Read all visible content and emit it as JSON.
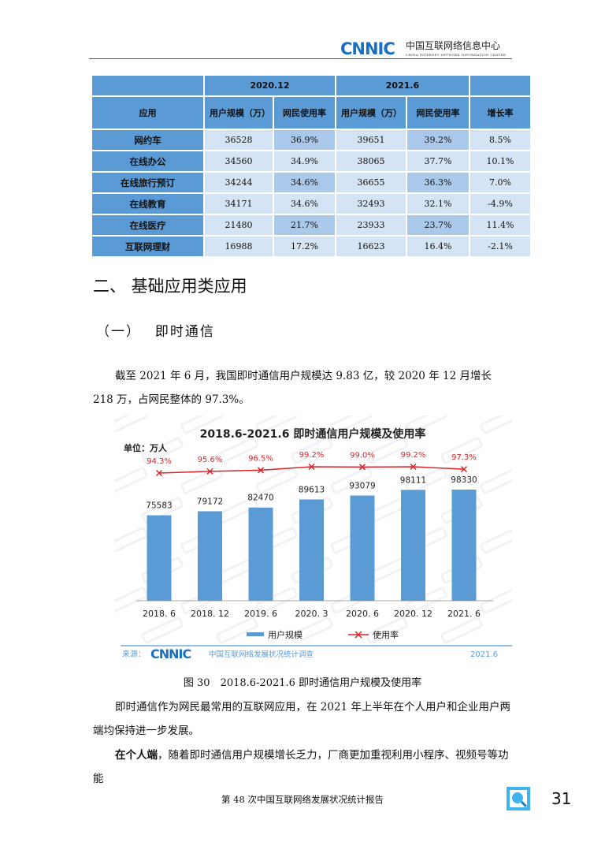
{
  "header": {
    "logo": "CNNIC",
    "org": "中国互联网络信息中心",
    "org_en": "CHINA INTERNET NETWORK INFORMATION CENTER"
  },
  "table": {
    "periods": [
      "2020.12",
      "2021.6"
    ],
    "headers": {
      "app": "应用",
      "users": "用户规模（万）",
      "rate": "网民使用率",
      "growth": "增长率"
    },
    "rows": [
      {
        "app": "网约车",
        "u1": "36528",
        "r1": "36.9%",
        "u2": "39651",
        "r2": "39.2%",
        "g": "8.5%"
      },
      {
        "app": "在线办公",
        "u1": "34560",
        "r1": "34.9%",
        "u2": "38065",
        "r2": "37.7%",
        "g": "10.1%"
      },
      {
        "app": "在线旅行预订",
        "u1": "34244",
        "r1": "34.6%",
        "u2": "36655",
        "r2": "36.3%",
        "g": "7.0%"
      },
      {
        "app": "在线教育",
        "u1": "34171",
        "r1": "34.6%",
        "u2": "32493",
        "r2": "32.1%",
        "g": "-4.9%"
      },
      {
        "app": "在线医疗",
        "u1": "21480",
        "r1": "21.7%",
        "u2": "23933",
        "r2": "23.7%",
        "g": "11.4%"
      },
      {
        "app": "互联网理财",
        "u1": "16988",
        "r1": "17.2%",
        "u2": "16623",
        "r2": "16.4%",
        "g": "-2.1%"
      }
    ]
  },
  "section": {
    "title": "二、 基础应用类应用",
    "subtitle": "（一）　 即时通信"
  },
  "para1": "截至 2021 年 6 月，我国即时通信用户规模达 9.83 亿，较 2020 年 12 月增长 218 万，占网民整体的 97.3%。",
  "chart_data": {
    "type": "bar",
    "title": "2018.6-2021.6 即时通信用户规模及使用率",
    "unit": "单位：万人",
    "categories": [
      "2018. 6",
      "2018. 12",
      "2019. 6",
      "2020. 3",
      "2020. 6",
      "2020. 12",
      "2021. 6"
    ],
    "series": [
      {
        "name": "用户规模",
        "type": "bar",
        "values": [
          75583,
          79172,
          82470,
          89613,
          93079,
          98111,
          98330
        ],
        "color": "#5b9bd5"
      },
      {
        "name": "使用率",
        "type": "line",
        "values": [
          94.3,
          95.6,
          96.5,
          99.2,
          99.0,
          99.2,
          97.3
        ],
        "labels": [
          "94.3%",
          "95.6%",
          "96.5%",
          "99.2%",
          "99.0%",
          "99.2%",
          "97.3%"
        ],
        "color": "#d9262b"
      }
    ],
    "source_label": "来源：",
    "source_logo": "CNNIC",
    "source_text": "中国互联网络发展状况统计调查",
    "date": "2021.6",
    "watermark": "CNNIC"
  },
  "caption": "图 30　2018.6-2021.6 即时通信用户规模及使用率",
  "para2": "即时通信作为网民最常用的互联网应用，在 2021 年上半年在个人用户和企业用户两端均保持进一步发展。",
  "para3_bold": "在个人端",
  "para3": "，随着即时通信用户规模增长乏力，厂商更加重视利用小程序、视频号等功能",
  "footer": {
    "text": "第 48 次中国互联网络发展状况统计报告",
    "page": "31",
    "icon": "search-magnifier-icon"
  }
}
